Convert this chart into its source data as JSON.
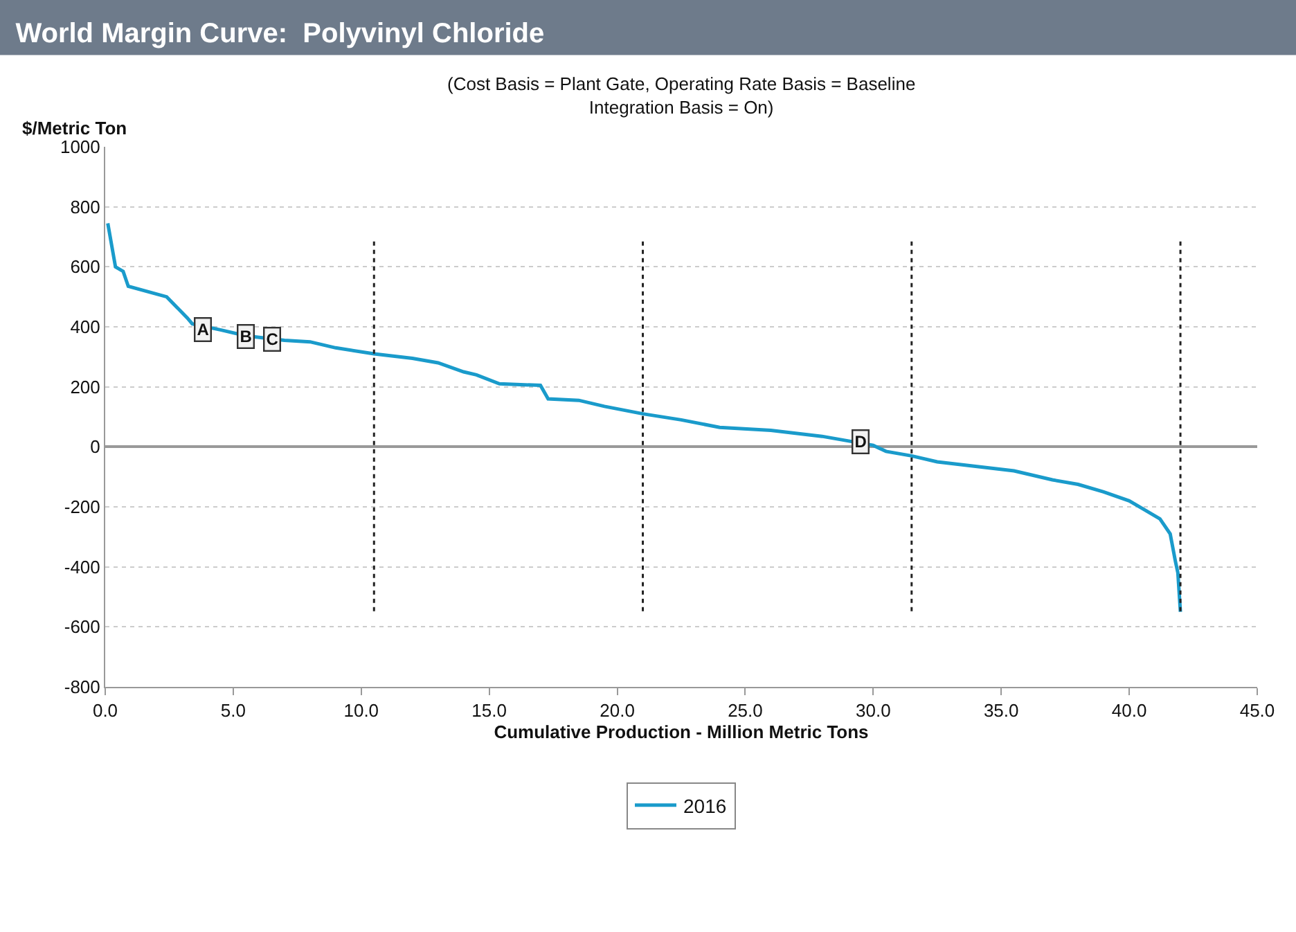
{
  "chart_data": {
    "type": "line",
    "title": "World Margin Curve:  Polyvinyl Chloride",
    "subtitle": "(Cost Basis = Plant Gate, Operating Rate Basis = Baseline\nIntegration Basis = On)",
    "xlabel": "Cumulative Production - Million Metric Tons",
    "ylabel": "$/Metric Ton",
    "series": [
      {
        "name": "2016",
        "color": "#1a9bcb",
        "x": [
          0.1,
          0.4,
          0.7,
          0.9,
          2.4,
          3.2,
          3.4,
          4.5,
          5.5,
          7,
          8,
          9,
          10.5,
          12,
          13,
          14,
          14.5,
          15.4,
          17,
          17.3,
          18.5,
          19.5,
          21,
          22.5,
          24,
          26,
          28,
          29,
          30,
          30.5,
          31.5,
          32.5,
          34,
          35.5,
          37,
          38,
          39,
          40,
          40.5,
          41.2,
          41.6,
          41.8,
          41.9,
          42.0
        ],
        "values": [
          745,
          600,
          585,
          535,
          500,
          430,
          410,
          390,
          370,
          355,
          350,
          330,
          310,
          295,
          280,
          250,
          240,
          210,
          205,
          160,
          155,
          135,
          110,
          90,
          65,
          55,
          35,
          20,
          5,
          -15,
          -30,
          -50,
          -65,
          -80,
          -110,
          -125,
          -150,
          -180,
          -205,
          -240,
          -290,
          -380,
          -420,
          -550
        ]
      }
    ],
    "annotations": [
      {
        "text": "A",
        "x": 3.8,
        "y": 390
      },
      {
        "text": "B",
        "x": 5.5,
        "y": 370
      },
      {
        "text": "C",
        "x": 6.5,
        "y": 360
      },
      {
        "text": "D",
        "x": 29.5,
        "y": 15
      }
    ],
    "ref_lines": [
      {
        "axis": "x",
        "value": 10.5,
        "label": null,
        "color": "#222222",
        "line_style": "dotted"
      },
      {
        "axis": "x",
        "value": 21.0,
        "label": null,
        "color": "#222222",
        "line_style": "dotted"
      },
      {
        "axis": "x",
        "value": 31.5,
        "label": null,
        "color": "#222222",
        "line_style": "dotted"
      },
      {
        "axis": "x",
        "value": 42.0,
        "label": null,
        "color": "#222222",
        "line_style": "dotted"
      }
    ],
    "xlim": [
      0,
      45
    ],
    "xticks": [
      {
        "value": 0,
        "label": "0.0"
      },
      {
        "value": 5,
        "label": "5.0"
      },
      {
        "value": 10,
        "label": "10.0"
      },
      {
        "value": 15,
        "label": "15.0"
      },
      {
        "value": 20,
        "label": "20.0"
      },
      {
        "value": 25,
        "label": "25.0"
      },
      {
        "value": 30,
        "label": "30.0"
      },
      {
        "value": 35,
        "label": "35.0"
      },
      {
        "value": 40,
        "label": "40.0"
      },
      {
        "value": 45,
        "label": "45.0"
      }
    ],
    "ylim": [
      -800,
      1000
    ],
    "yticks": [
      -800,
      -600,
      -400,
      -200,
      0,
      200,
      400,
      600,
      800,
      1000
    ],
    "grid": "y",
    "legend": "bottom",
    "marker": "none",
    "line_style": "solid"
  }
}
